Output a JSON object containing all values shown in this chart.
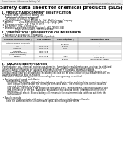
{
  "header_left": "Product name: Lithium Ion Battery Cell",
  "header_right_line1": "SDS(D2021-12852/ SRP049-00910",
  "header_right_line2": "Establishment / Revision: Dec.1.2019",
  "title": "Safety data sheet for chemical products (SDS)",
  "section1_title": "1. PRODUCT AND COMPANY IDENTIFICATION",
  "section1_lines": [
    "  • Product name: Lithium Ion Battery Cell",
    "  • Product code: Cylindrical type cell",
    "       SY166560, SY168550, SY168504",
    "  • Company name:     Sanyo Electric Co., Ltd., Mobile Energy Company",
    "  • Address:          2001, Kamiishizu, Ibusuki-City, Hyogo, Japan",
    "  • Telephone number:  +81-1799-20-4111",
    "  • Fax number:  +81-1799-26-4123",
    "  • Emergency telephone number (daytime): +81-799-20-3842",
    "                       [Night and holiday]: +81-799-26-3121"
  ],
  "section2_title": "2. COMPOSITION / INFORMATION ON INGREDIENTS",
  "section2_lines": [
    "  • Substance or preparation: Preparation",
    "  • Information about the chemical nature of product:"
  ],
  "table_col_headers": [
    "Common chemical name /\nSpecies name",
    "CAS number",
    "Concentration /\nConcentration range",
    "Classification and\nhazard labeling"
  ],
  "table_rows": [
    [
      "Lithium mixed carbonate\n(LiMnxCoyNizO2)",
      "-",
      "(30-60%)",
      "-"
    ],
    [
      "Iron",
      "7439-89-6",
      "10-25%",
      "-"
    ],
    [
      "Aluminum",
      "7429-90-5",
      "2-6%",
      "-"
    ],
    [
      "Graphite\n(Natural graphite)\n(Artificial graphite)",
      "7782-42-5\n7782-44-2",
      "10-25%",
      "-"
    ],
    [
      "Copper",
      "7440-50-8",
      "5-15%",
      "Sensitization of the skin\ngroup No.2"
    ],
    [
      "Organic electrolyte",
      "-",
      "10-20%",
      "Inflammable liquid"
    ]
  ],
  "section3_title": "3. HAZARDS IDENTIFICATION",
  "section3_paras": [
    "  For the battery cell, chemical materials are stored in a hermetically sealed metal case, designed to withstand",
    "  temperatures and pressures encountered during normal use. As a result, during normal use, there is no",
    "  physical danger of ignition or explosion and there is danger of hazardous materials leakage.",
    "  However, if exposed to a fire, added mechanical shocks, decomposed, violent electric forces by miss-use,",
    "  the gas release vent will be operated. The battery cell case will be breached at the gas release vent, and the",
    "  hazardous materials may be released.",
    "  Moreover, if heated strongly by the surrounding fire, some gas may be emitted.",
    "",
    "  • Most important hazard and effects:",
    "       Human health effects:",
    "          Inhalation: The release of the electrolyte has an anesthesia action and stimulates a respiratory tract.",
    "          Skin contact: The release of the electrolyte stimulates a skin. The electrolyte skin contact causes a",
    "          sore and stimulation on the skin.",
    "          Eye contact: The release of the electrolyte stimulates eyes. The electrolyte eye contact causes a sore",
    "          and stimulation on the eye. Especially, a substance that causes a strong inflammation of the eye is",
    "          contained.",
    "          Environmental effects: Since a battery cell remains in the environment, do not throw out it into the",
    "          environment.",
    "",
    "  • Specific hazards:",
    "       If the electrolyte contacts with water, it will generate detrimental hydrogen fluoride.",
    "       Since the used electrolyte is inflammable liquid, do not bring close to fire."
  ],
  "bg_color": "#ffffff",
  "text_color": "#000000",
  "table_header_bg": "#cccccc",
  "line_color": "#888888",
  "header_bar_color": "#eeeeee"
}
